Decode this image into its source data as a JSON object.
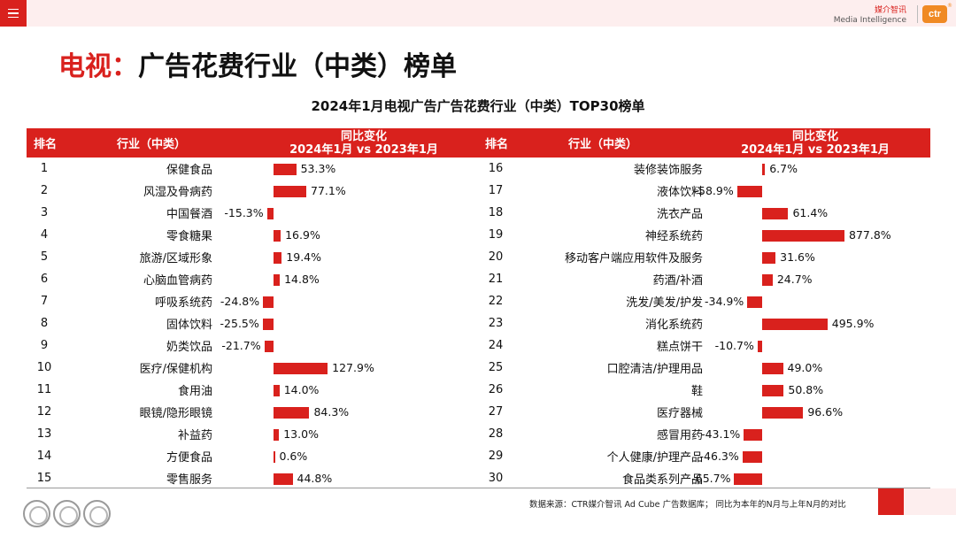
{
  "page": {
    "title_accent": "电视：",
    "title_rest": "广告花费行业（中类）榜单",
    "subtitle": "2024年1月电视广告广告花费行业（中类）TOP30榜单",
    "source": "数据来源：CTR媒介智讯 Ad Cube 广告数据库；  同比为本年的N月与上年N月的对比"
  },
  "brand": {
    "name_cn": "媒介智讯",
    "name_en": "Media Intelligence",
    "logo": "ctr",
    "logo_reg": "®"
  },
  "colors": {
    "accent": "#d9211d",
    "pink": "#fdeeee"
  },
  "table": {
    "headers": {
      "rank": "排名",
      "industry": "行业（中类）",
      "change_line1": "同比变化",
      "change_line2": "2024年1月 vs 2023年1月"
    },
    "left": [
      {
        "rank": "1",
        "industry": "保健食品",
        "change": 53.3,
        "label": "53.3%"
      },
      {
        "rank": "2",
        "industry": "风湿及骨病药",
        "change": 77.1,
        "label": "77.1%"
      },
      {
        "rank": "3",
        "industry": "中国餐酒",
        "change": -15.3,
        "label": "-15.3%"
      },
      {
        "rank": "4",
        "industry": "零食糖果",
        "change": 16.9,
        "label": "16.9%"
      },
      {
        "rank": "5",
        "industry": "旅游/区域形象",
        "change": 19.4,
        "label": "19.4%"
      },
      {
        "rank": "6",
        "industry": "心脑血管病药",
        "change": 14.8,
        "label": "14.8%"
      },
      {
        "rank": "7",
        "industry": "呼吸系统药",
        "change": -24.8,
        "label": "-24.8%"
      },
      {
        "rank": "8",
        "industry": "固体饮料",
        "change": -25.5,
        "label": "-25.5%"
      },
      {
        "rank": "9",
        "industry": "奶类饮品",
        "change": -21.7,
        "label": "-21.7%"
      },
      {
        "rank": "10",
        "industry": "医疗/保健机构",
        "change": 127.9,
        "label": "127.9%"
      },
      {
        "rank": "11",
        "industry": "食用油",
        "change": 14.0,
        "label": "14.0%"
      },
      {
        "rank": "12",
        "industry": "眼镜/隐形眼镜",
        "change": 84.3,
        "label": "84.3%"
      },
      {
        "rank": "13",
        "industry": "补益药",
        "change": 13.0,
        "label": "13.0%"
      },
      {
        "rank": "14",
        "industry": "方便食品",
        "change": 0.6,
        "label": "0.6%"
      },
      {
        "rank": "15",
        "industry": "零售服务",
        "change": 44.8,
        "label": "44.8%"
      }
    ],
    "right": [
      {
        "rank": "16",
        "industry": "装修装饰服务",
        "change": 6.7,
        "label": "6.7%"
      },
      {
        "rank": "17",
        "industry": "液体饮料",
        "change": -58.9,
        "label": "-58.9%"
      },
      {
        "rank": "18",
        "industry": "洗衣产品",
        "change": 61.4,
        "label": "61.4%"
      },
      {
        "rank": "19",
        "industry": "神经系统药",
        "change": 877.8,
        "label": "877.8%"
      },
      {
        "rank": "20",
        "industry": "移动客户端应用软件及服务",
        "change": 31.6,
        "label": "31.6%"
      },
      {
        "rank": "21",
        "industry": "药酒/补酒",
        "change": 24.7,
        "label": "24.7%"
      },
      {
        "rank": "22",
        "industry": "洗发/美发/护发",
        "change": -34.9,
        "label": "-34.9%"
      },
      {
        "rank": "23",
        "industry": "消化系统药",
        "change": 495.9,
        "label": "495.9%"
      },
      {
        "rank": "24",
        "industry": "糕点饼干",
        "change": -10.7,
        "label": "-10.7%"
      },
      {
        "rank": "25",
        "industry": "口腔清洁/护理用品",
        "change": 49.0,
        "label": "49.0%"
      },
      {
        "rank": "26",
        "industry": "鞋",
        "change": 50.8,
        "label": "50.8%"
      },
      {
        "rank": "27",
        "industry": "医疗器械",
        "change": 96.6,
        "label": "96.6%"
      },
      {
        "rank": "28",
        "industry": "感冒用药",
        "change": -43.1,
        "label": "-43.1%"
      },
      {
        "rank": "29",
        "industry": "个人健康/护理产品",
        "change": -46.3,
        "label": "-46.3%"
      },
      {
        "rank": "30",
        "industry": "食品类系列产品",
        "change": -65.7,
        "label": "-65.7%"
      }
    ]
  }
}
